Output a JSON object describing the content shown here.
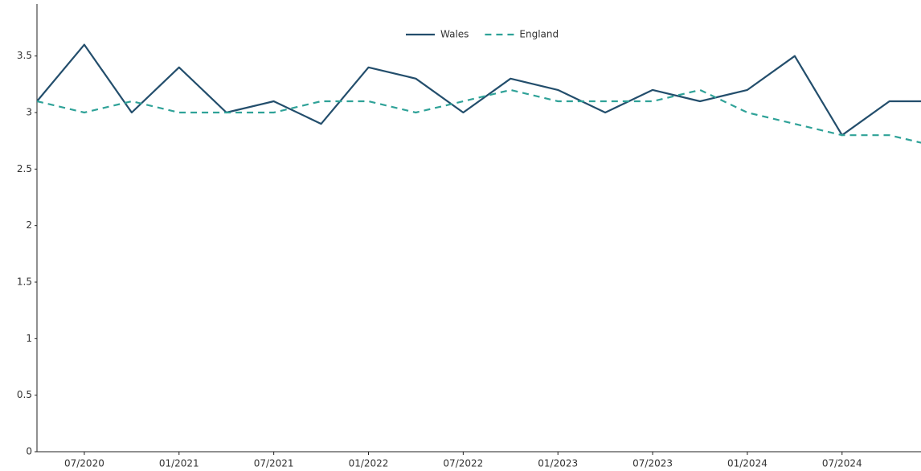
{
  "chart_data": {
    "type": "line",
    "x": [
      "04/2020",
      "07/2020",
      "10/2020",
      "01/2021",
      "04/2021",
      "07/2021",
      "10/2021",
      "01/2022",
      "04/2022",
      "07/2022",
      "10/2022",
      "01/2023",
      "04/2023",
      "07/2023",
      "10/2023",
      "01/2024",
      "04/2024",
      "07/2024",
      "10/2024",
      "01/2025"
    ],
    "series": [
      {
        "name": "Wales",
        "color": "#234e6c",
        "dash": false,
        "values": [
          3.1,
          3.6,
          3.0,
          3.4,
          3.0,
          3.1,
          2.9,
          3.4,
          3.3,
          3.0,
          3.3,
          3.2,
          3.0,
          3.2,
          3.1,
          3.2,
          3.5,
          2.8,
          3.1,
          3.1
        ]
      },
      {
        "name": "England",
        "color": "#2fa298",
        "dash": true,
        "values": [
          3.1,
          3.0,
          3.1,
          3.0,
          3.0,
          3.0,
          3.1,
          3.1,
          3.0,
          3.1,
          3.2,
          3.1,
          3.1,
          3.1,
          3.2,
          3.0,
          2.9,
          2.8,
          2.8,
          2.7
        ]
      }
    ],
    "xlim": [
      "04/2020",
      "12/2024"
    ],
    "xticks": [
      "07/2020",
      "01/2021",
      "07/2021",
      "01/2022",
      "07/2022",
      "01/2023",
      "07/2023",
      "01/2024",
      "07/2024"
    ],
    "ylim": [
      0,
      3.96
    ],
    "yticks": [
      0,
      0.5,
      1,
      1.5,
      2,
      2.5,
      3,
      3.5
    ],
    "grid": false,
    "legend": "top"
  }
}
